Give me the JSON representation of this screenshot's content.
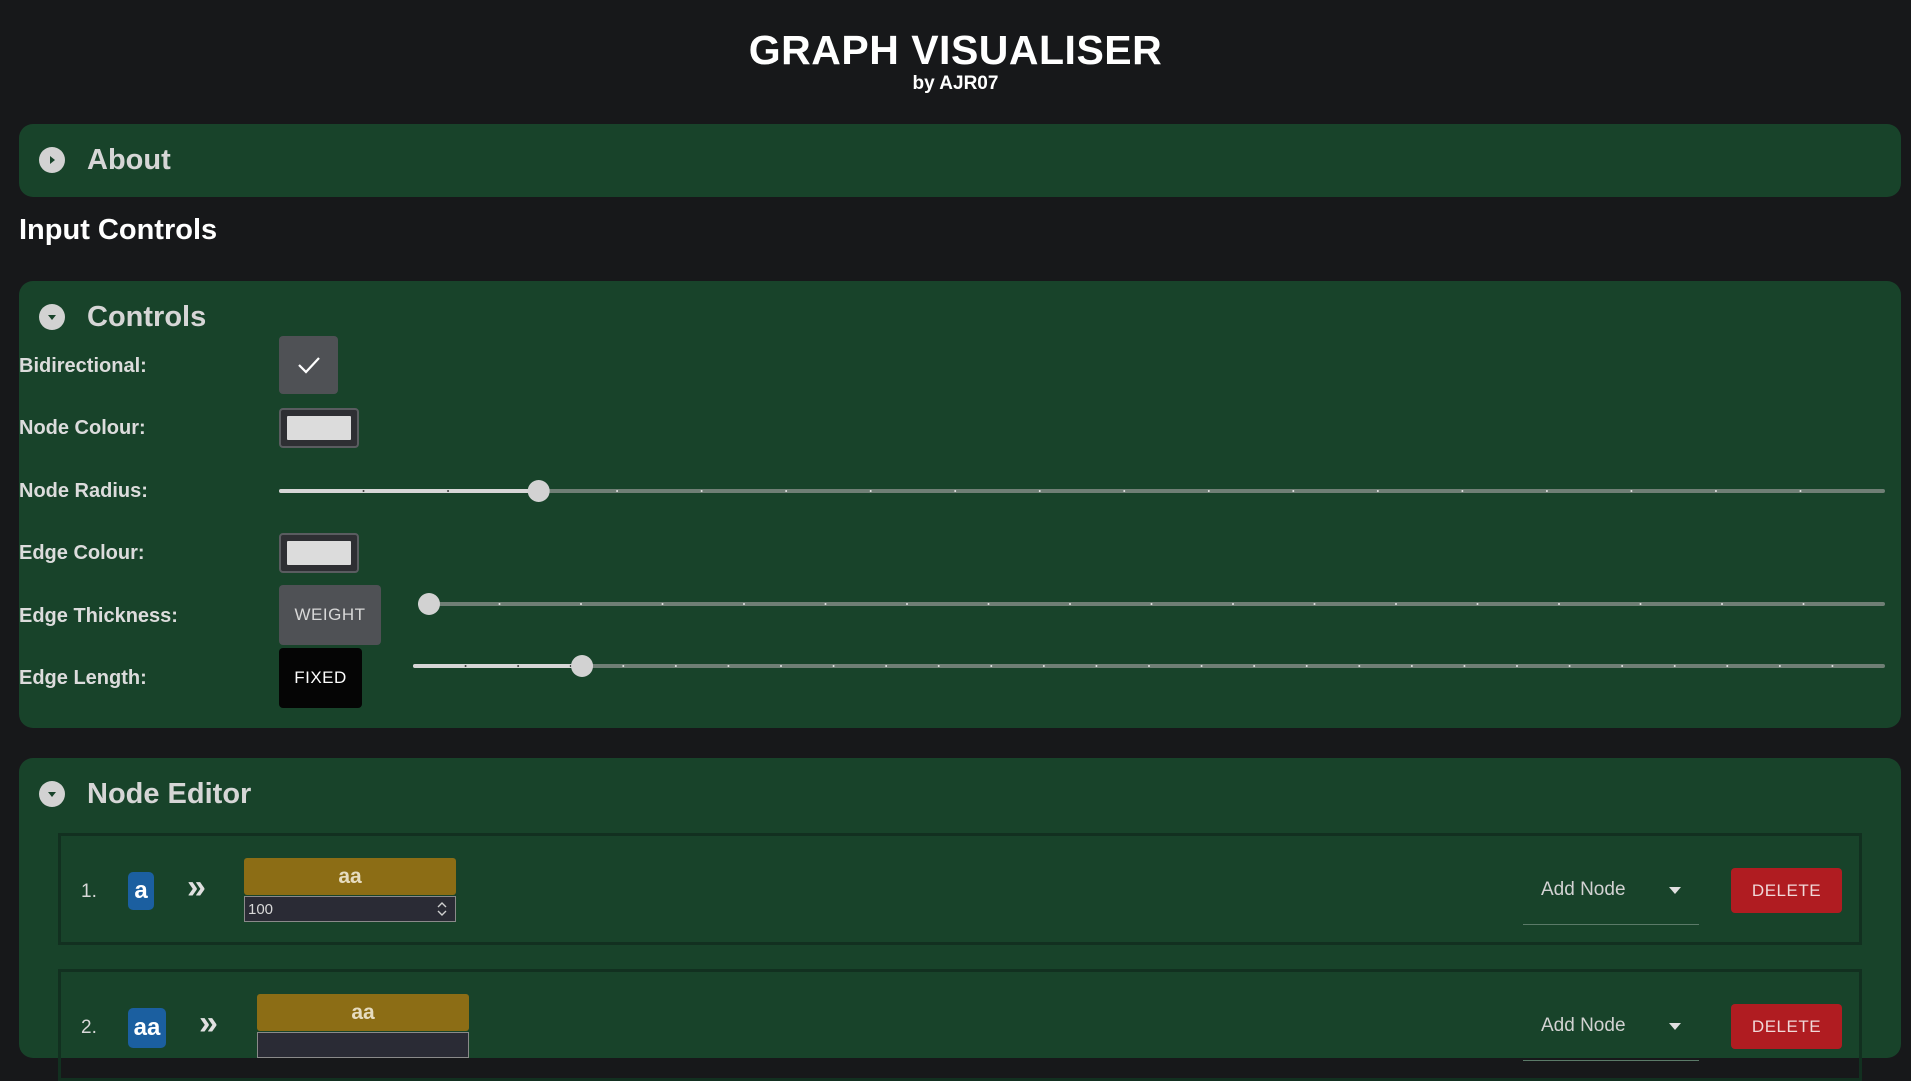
{
  "header": {
    "title": "GRAPH VISUALISER",
    "subtitle": "by AJR07"
  },
  "about": {
    "title": "About",
    "expanded": false
  },
  "input_controls": {
    "title": "Input Controls"
  },
  "controls": {
    "title": "Controls",
    "expanded": true,
    "bidirectional": {
      "label": "Bidirectional:",
      "checked": true
    },
    "node_colour": {
      "label": "Node Colour:",
      "value": "#dcdcdc"
    },
    "node_radius": {
      "label": "Node Radius:",
      "level_fraction": 0.157
    },
    "edge_colour": {
      "label": "Edge Colour:",
      "value": "#dcdcdc"
    },
    "edge_thickness": {
      "label": "Edge Thickness:",
      "mode_button": "WEIGHT",
      "level_fraction": 0.0
    },
    "edge_length": {
      "label": "Edge Length:",
      "mode_button": "FIXED",
      "level_fraction": 0.109
    }
  },
  "node_editor": {
    "title": "Node Editor",
    "expanded": true,
    "rows": [
      {
        "index": "1.",
        "node": "a",
        "target": "aa",
        "weight": "100",
        "add_placeholder": "Add Node",
        "delete_label": "DELETE"
      },
      {
        "index": "2.",
        "node": "aa",
        "target": "aa",
        "weight": "",
        "add_placeholder": "Add Node",
        "delete_label": "DELETE"
      }
    ]
  },
  "colors": {
    "page_bg": "#17181a",
    "panel_bg": "#18432a",
    "node_chip": "#1b5fa0",
    "target_chip": "#8c6d15",
    "delete": "#b01c21"
  }
}
